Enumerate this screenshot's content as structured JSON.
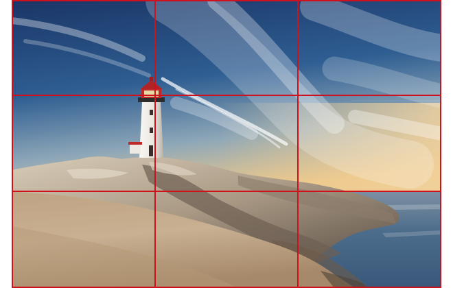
{
  "photo": {
    "subject-icon": "lighthouse-on-rocks-icon",
    "sky_top": "#1f3f73",
    "sky_horizon": "#e9c48b",
    "sea": "#4c6f8f",
    "rock_light": "#c9b59a",
    "rock_shadow": "#5a4f45",
    "lighthouse_body": "#f3f1ec",
    "lighthouse_lamp": "#c0282a"
  },
  "overlay": {
    "type": "rule-of-thirds-grid",
    "line_color": "#d0101a",
    "rows": 3,
    "columns": 3
  }
}
